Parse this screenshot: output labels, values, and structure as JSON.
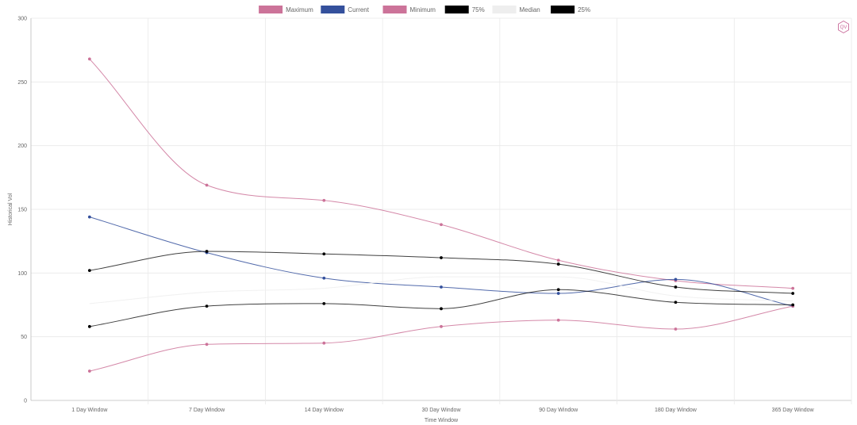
{
  "logo": {
    "text": "QV"
  },
  "chart_data": {
    "type": "line",
    "categories": [
      "1 Day Window",
      "7 Day Window",
      "14 Day Window",
      "30 Day Window",
      "90 Day Window",
      "180 Day Window",
      "365 Day Window"
    ],
    "xlabel": "Time Window",
    "ylabel": "Historical Vol",
    "ylim": [
      0,
      300
    ],
    "yticks": [
      0,
      50,
      100,
      150,
      200,
      250,
      300
    ],
    "grid": true,
    "legend_position": "top-center",
    "series": [
      {
        "name": "Maximum",
        "color": "#cc7399",
        "values": [
          268,
          169,
          157,
          138,
          110,
          94,
          88
        ]
      },
      {
        "name": "Current",
        "color": "#34509c",
        "values": [
          144,
          116,
          96,
          89,
          84,
          95,
          74
        ]
      },
      {
        "name": "Minimum",
        "color": "#cc7399",
        "values": [
          23,
          44,
          45,
          58,
          63,
          56,
          74
        ]
      },
      {
        "name": "75%",
        "color": "#000000",
        "values": [
          102,
          117,
          115,
          112,
          107,
          89,
          84
        ]
      },
      {
        "name": "Median",
        "color": "#eeeeee",
        "values": [
          76,
          85,
          88,
          97,
          97,
          82,
          78
        ]
      },
      {
        "name": "25%",
        "color": "#000000",
        "values": [
          58,
          74,
          76,
          72,
          87,
          77,
          75
        ]
      }
    ]
  }
}
